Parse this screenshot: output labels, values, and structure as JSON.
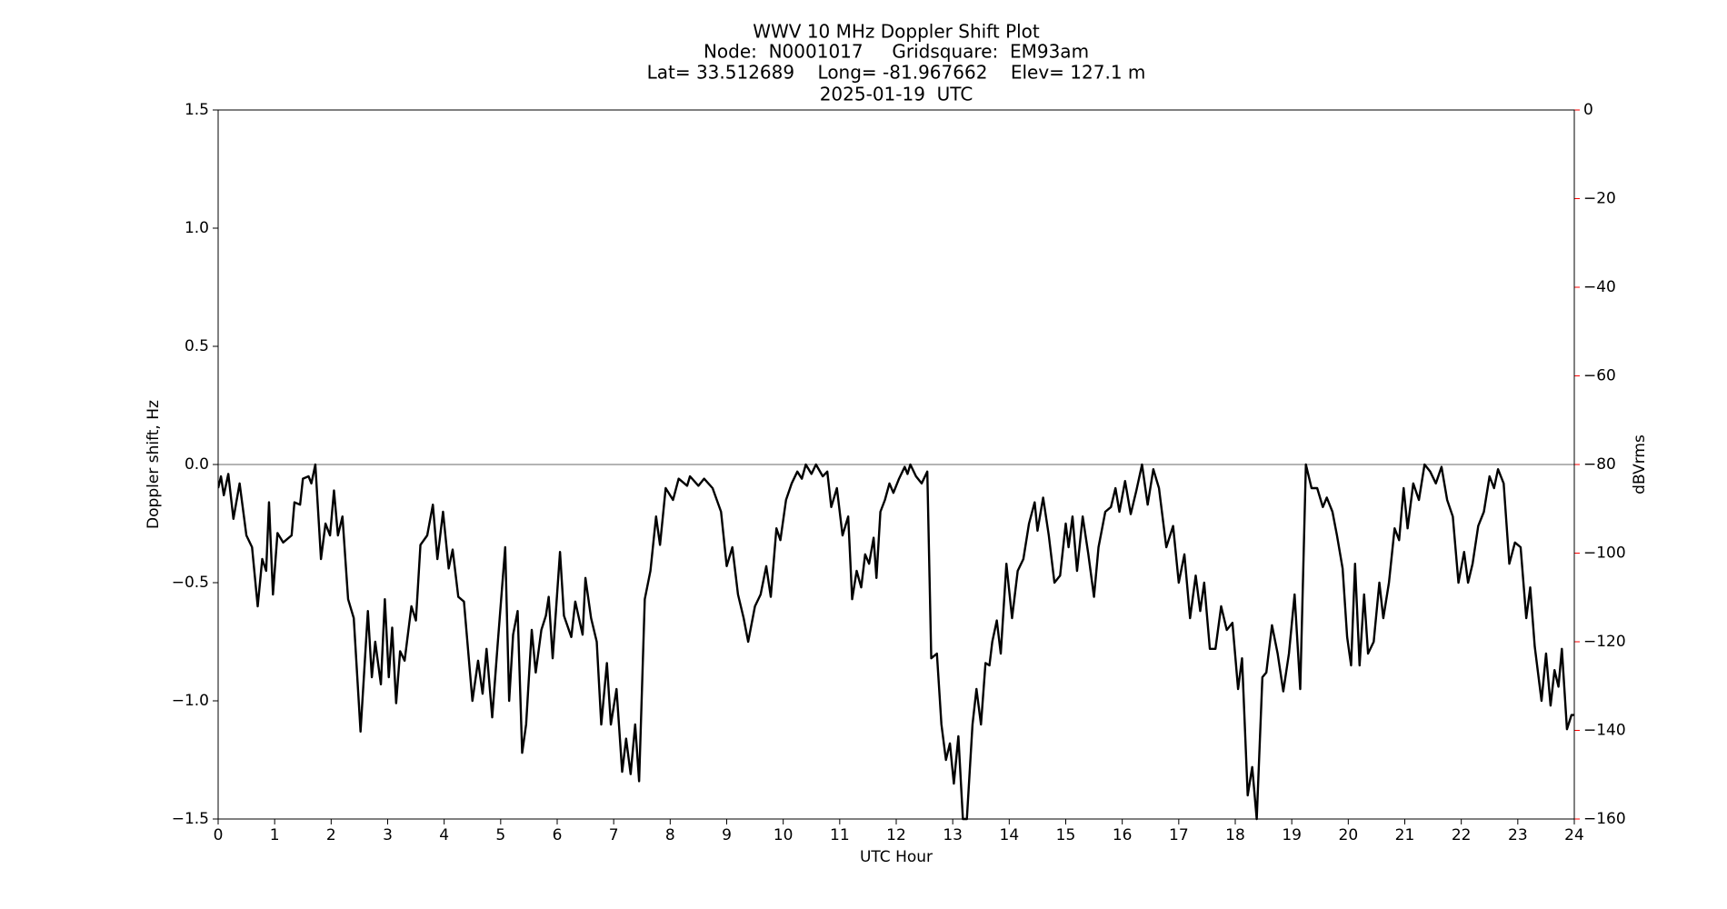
{
  "chart_data": {
    "type": "line",
    "title": [
      "WWV 10 MHz Doppler Shift Plot",
      "Node:  N0001017     Gridsquare:  EM93am",
      "Lat= 33.512689    Long= -81.967662    Elev= 127.1 m",
      "2025-01-19  UTC"
    ],
    "xlabel": "UTC Hour",
    "ylabel": "Doppler shift, Hz",
    "y2label": "dBVrms",
    "xlim": [
      0,
      24
    ],
    "xticks": [
      0,
      1,
      2,
      3,
      4,
      5,
      6,
      7,
      8,
      9,
      10,
      11,
      12,
      13,
      14,
      15,
      16,
      17,
      18,
      19,
      20,
      21,
      22,
      23,
      24
    ],
    "ylim": [
      -1.5,
      1.5
    ],
    "yticks": [
      {
        "value": -1.5,
        "label": "−1.5"
      },
      {
        "value": -1.0,
        "label": "−1.0"
      },
      {
        "value": -0.5,
        "label": "−0.5"
      },
      {
        "value": 0,
        "label": "0.0"
      },
      0.5,
      {
        "value": 1.0,
        "label": "1.0"
      },
      1.5
    ],
    "y2lim": [
      -160,
      0
    ],
    "y2ticks": [
      {
        "value": -160,
        "label": "−160"
      },
      {
        "value": -140,
        "label": "−140"
      },
      {
        "value": -120,
        "label": "−120"
      },
      {
        "value": -100,
        "label": "−100"
      },
      {
        "value": -80,
        "label": "−80"
      },
      {
        "value": -60,
        "label": "−60"
      },
      {
        "value": -40,
        "label": "−40"
      },
      {
        "value": -20,
        "label": "−20"
      },
      0
    ],
    "y2color": "#ff0000",
    "hline": 0,
    "hline_color": "#888888",
    "x": [
      0,
      0.05,
      0.1,
      0.18,
      0.27,
      0.38,
      0.5,
      0.6,
      0.7,
      0.78,
      0.85,
      0.9,
      0.97,
      1.05,
      1.15,
      1.3,
      1.35,
      1.45,
      1.5,
      1.6,
      1.65,
      1.72,
      1.82,
      1.9,
      1.98,
      2.05,
      2.12,
      2.2,
      2.3,
      2.4,
      2.52,
      2.65,
      2.72,
      2.78,
      2.88,
      2.95,
      3.02,
      3.08,
      3.15,
      3.22,
      3.3,
      3.42,
      3.5,
      3.58,
      3.7,
      3.8,
      3.88,
      3.98,
      4.08,
      4.15,
      4.25,
      4.35,
      4.5,
      4.6,
      4.68,
      4.75,
      4.85,
      4.95,
      5.08,
      5.15,
      5.22,
      5.3,
      5.38,
      5.45,
      5.55,
      5.62,
      5.72,
      5.8,
      5.85,
      5.92,
      6.05,
      6.12,
      6.25,
      6.32,
      6.45,
      6.5,
      6.6,
      6.7,
      6.78,
      6.88,
      6.95,
      7.05,
      7.15,
      7.22,
      7.3,
      7.38,
      7.45,
      7.55,
      7.65,
      7.75,
      7.82,
      7.92,
      8.05,
      8.15,
      8.3,
      8.35,
      8.5,
      8.6,
      8.75,
      8.9,
      9.0,
      9.1,
      9.2,
      9.3,
      9.38,
      9.5,
      9.6,
      9.7,
      9.78,
      9.88,
      9.95,
      10.05,
      10.15,
      10.25,
      10.33,
      10.4,
      10.5,
      10.58,
      10.7,
      10.78,
      10.85,
      10.95,
      11.05,
      11.15,
      11.22,
      11.3,
      11.38,
      11.45,
      11.52,
      11.6,
      11.65,
      11.72,
      11.8,
      11.88,
      11.95,
      12.05,
      12.15,
      12.2,
      12.25,
      12.35,
      12.45,
      12.55,
      12.62,
      12.72,
      12.8,
      12.88,
      12.95,
      13.02,
      13.1,
      13.18,
      13.25,
      13.35,
      13.42,
      13.5,
      13.58,
      13.65,
      13.7,
      13.78,
      13.85,
      13.95,
      14.05,
      14.15,
      14.25,
      14.35,
      14.45,
      14.5,
      14.6,
      14.7,
      14.8,
      14.9,
      15.0,
      15.05,
      15.12,
      15.2,
      15.3,
      15.4,
      15.5,
      15.58,
      15.7,
      15.8,
      15.88,
      15.95,
      16.05,
      16.15,
      16.25,
      16.35,
      16.45,
      16.55,
      16.65,
      16.78,
      16.9,
      17.0,
      17.1,
      17.2,
      17.3,
      17.38,
      17.45,
      17.55,
      17.65,
      17.75,
      17.85,
      17.95,
      18.05,
      18.12,
      18.22,
      18.3,
      18.38,
      18.48,
      18.55,
      18.65,
      18.75,
      18.85,
      18.95,
      19.05,
      19.15,
      19.25,
      19.35,
      19.45,
      19.55,
      19.62,
      19.72,
      19.8,
      19.9,
      19.98,
      20.05,
      20.12,
      20.2,
      20.28,
      20.35,
      20.45,
      20.55,
      20.62,
      20.72,
      20.82,
      20.9,
      20.98,
      21.05,
      21.15,
      21.25,
      21.35,
      21.45,
      21.55,
      21.65,
      21.75,
      21.85,
      21.95,
      22.05,
      22.12,
      22.2,
      22.3,
      22.4,
      22.5,
      22.58,
      22.65,
      22.75,
      22.85,
      22.95,
      23.05,
      23.15,
      23.22,
      23.3,
      23.42,
      23.5,
      23.58,
      23.65,
      23.72,
      23.78,
      23.87,
      23.95,
      24.0
    ],
    "series": [
      {
        "color": "#000000",
        "values": [
          -0.1,
          -0.05,
          -0.13,
          -0.04,
          -0.23,
          -0.08,
          -0.3,
          -0.35,
          -0.6,
          -0.4,
          -0.45,
          -0.16,
          -0.55,
          -0.29,
          -0.33,
          -0.3,
          -0.16,
          -0.17,
          -0.06,
          -0.05,
          -0.08,
          0.0,
          -0.4,
          -0.25,
          -0.3,
          -0.11,
          -0.3,
          -0.22,
          -0.57,
          -0.65,
          -1.13,
          -0.62,
          -0.9,
          -0.75,
          -0.93,
          -0.57,
          -0.9,
          -0.69,
          -1.01,
          -0.79,
          -0.83,
          -0.6,
          -0.66,
          -0.34,
          -0.3,
          -0.17,
          -0.4,
          -0.2,
          -0.44,
          -0.36,
          -0.56,
          -0.58,
          -1.0,
          -0.83,
          -0.97,
          -0.78,
          -1.07,
          -0.75,
          -0.35,
          -1.0,
          -0.72,
          -0.62,
          -1.22,
          -1.1,
          -0.7,
          -0.88,
          -0.7,
          -0.64,
          -0.56,
          -0.82,
          -0.37,
          -0.64,
          -0.73,
          -0.58,
          -0.72,
          -0.48,
          -0.65,
          -0.75,
          -1.1,
          -0.84,
          -1.1,
          -0.95,
          -1.3,
          -1.16,
          -1.31,
          -1.1,
          -1.34,
          -0.57,
          -0.45,
          -0.22,
          -0.34,
          -0.1,
          -0.15,
          -0.06,
          -0.09,
          -0.05,
          -0.09,
          -0.06,
          -0.1,
          -0.2,
          -0.43,
          -0.35,
          -0.55,
          -0.65,
          -0.75,
          -0.6,
          -0.55,
          -0.43,
          -0.56,
          -0.27,
          -0.32,
          -0.15,
          -0.08,
          -0.03,
          -0.06,
          0.0,
          -0.04,
          0.0,
          -0.05,
          -0.03,
          -0.18,
          -0.1,
          -0.3,
          -0.22,
          -0.57,
          -0.45,
          -0.52,
          -0.38,
          -0.42,
          -0.31,
          -0.48,
          -0.2,
          -0.15,
          -0.08,
          -0.12,
          -0.06,
          -0.01,
          -0.04,
          0.0,
          -0.05,
          -0.08,
          -0.03,
          -0.82,
          -0.8,
          -1.1,
          -1.25,
          -1.18,
          -1.35,
          -1.15,
          -1.5,
          -1.5,
          -1.1,
          -0.95,
          -1.1,
          -0.84,
          -0.85,
          -0.75,
          -0.66,
          -0.8,
          -0.42,
          -0.65,
          -0.45,
          -0.4,
          -0.25,
          -0.16,
          -0.28,
          -0.14,
          -0.3,
          -0.5,
          -0.47,
          -0.25,
          -0.35,
          -0.22,
          -0.45,
          -0.22,
          -0.38,
          -0.56,
          -0.35,
          -0.2,
          -0.18,
          -0.1,
          -0.2,
          -0.07,
          -0.21,
          -0.11,
          0.0,
          -0.17,
          -0.02,
          -0.1,
          -0.35,
          -0.26,
          -0.5,
          -0.38,
          -0.65,
          -0.47,
          -0.62,
          -0.5,
          -0.78,
          -0.78,
          -0.6,
          -0.7,
          -0.67,
          -0.95,
          -0.82,
          -1.4,
          -1.28,
          -1.5,
          -0.9,
          -0.88,
          -0.68,
          -0.8,
          -0.96,
          -0.8,
          -0.55,
          -0.95,
          0.0,
          -0.1,
          -0.1,
          -0.18,
          -0.14,
          -0.2,
          -0.3,
          -0.44,
          -0.73,
          -0.85,
          -0.42,
          -0.85,
          -0.55,
          -0.8,
          -0.75,
          -0.5,
          -0.65,
          -0.5,
          -0.27,
          -0.32,
          -0.1,
          -0.27,
          -0.08,
          -0.15,
          0.0,
          -0.03,
          -0.08,
          -0.01,
          -0.15,
          -0.22,
          -0.5,
          -0.37,
          -0.5,
          -0.42,
          -0.26,
          -0.2,
          -0.05,
          -0.1,
          -0.02,
          -0.08,
          -0.42,
          -0.33,
          -0.35,
          -0.65,
          -0.52,
          -0.77,
          -1.0,
          -0.8,
          -1.02,
          -0.87,
          -0.94,
          -0.78,
          -1.12,
          -1.06,
          -1.06
        ]
      }
    ]
  }
}
